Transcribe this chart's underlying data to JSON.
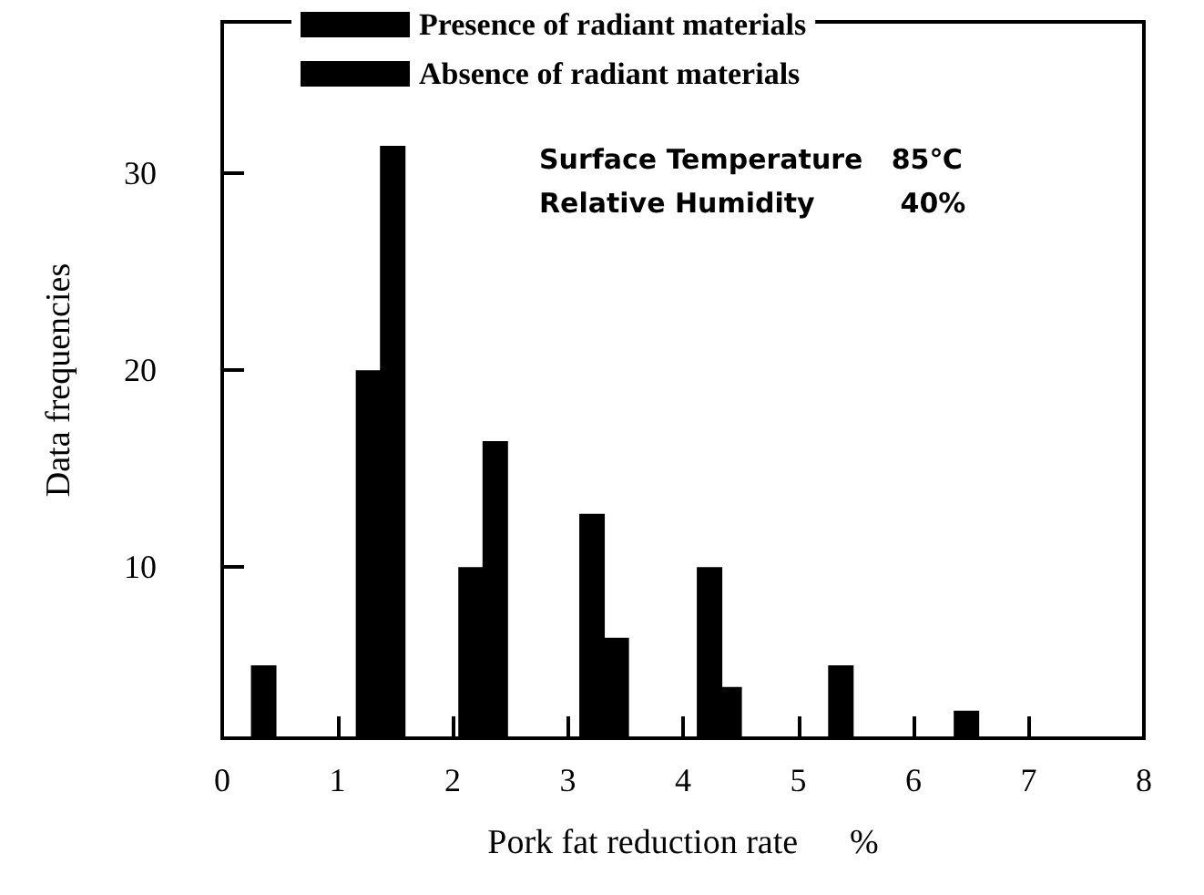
{
  "chart_data": {
    "type": "bar",
    "xlabel": "Pork fat reduction rate      %",
    "ylabel": "Data frequencies",
    "xlim": [
      0,
      8
    ],
    "xticks": [
      0,
      1,
      2,
      3,
      4,
      5,
      6,
      7,
      8
    ],
    "ylim": [
      1.3,
      37.7
    ],
    "yticks": [
      10,
      20,
      30
    ],
    "series": [
      {
        "name": "Presence of radiant materials",
        "color": "#000000",
        "x": [
          1.27,
          2.16,
          3.21,
          4.23
        ],
        "values": [
          20,
          10,
          12.7,
          10
        ]
      },
      {
        "name": "Absence of radiant materials",
        "color": "#000000",
        "x": [
          0.36,
          1.48,
          2.37,
          3.42,
          4.4,
          5.37,
          6.46
        ],
        "values": [
          5,
          31.4,
          16.4,
          6.4,
          3.9,
          5,
          2.7
        ]
      }
    ],
    "annotations": [
      "Surface Temperature   85℃",
      "Relative Humidity         40%"
    ],
    "legend": "top",
    "grid": false
  }
}
